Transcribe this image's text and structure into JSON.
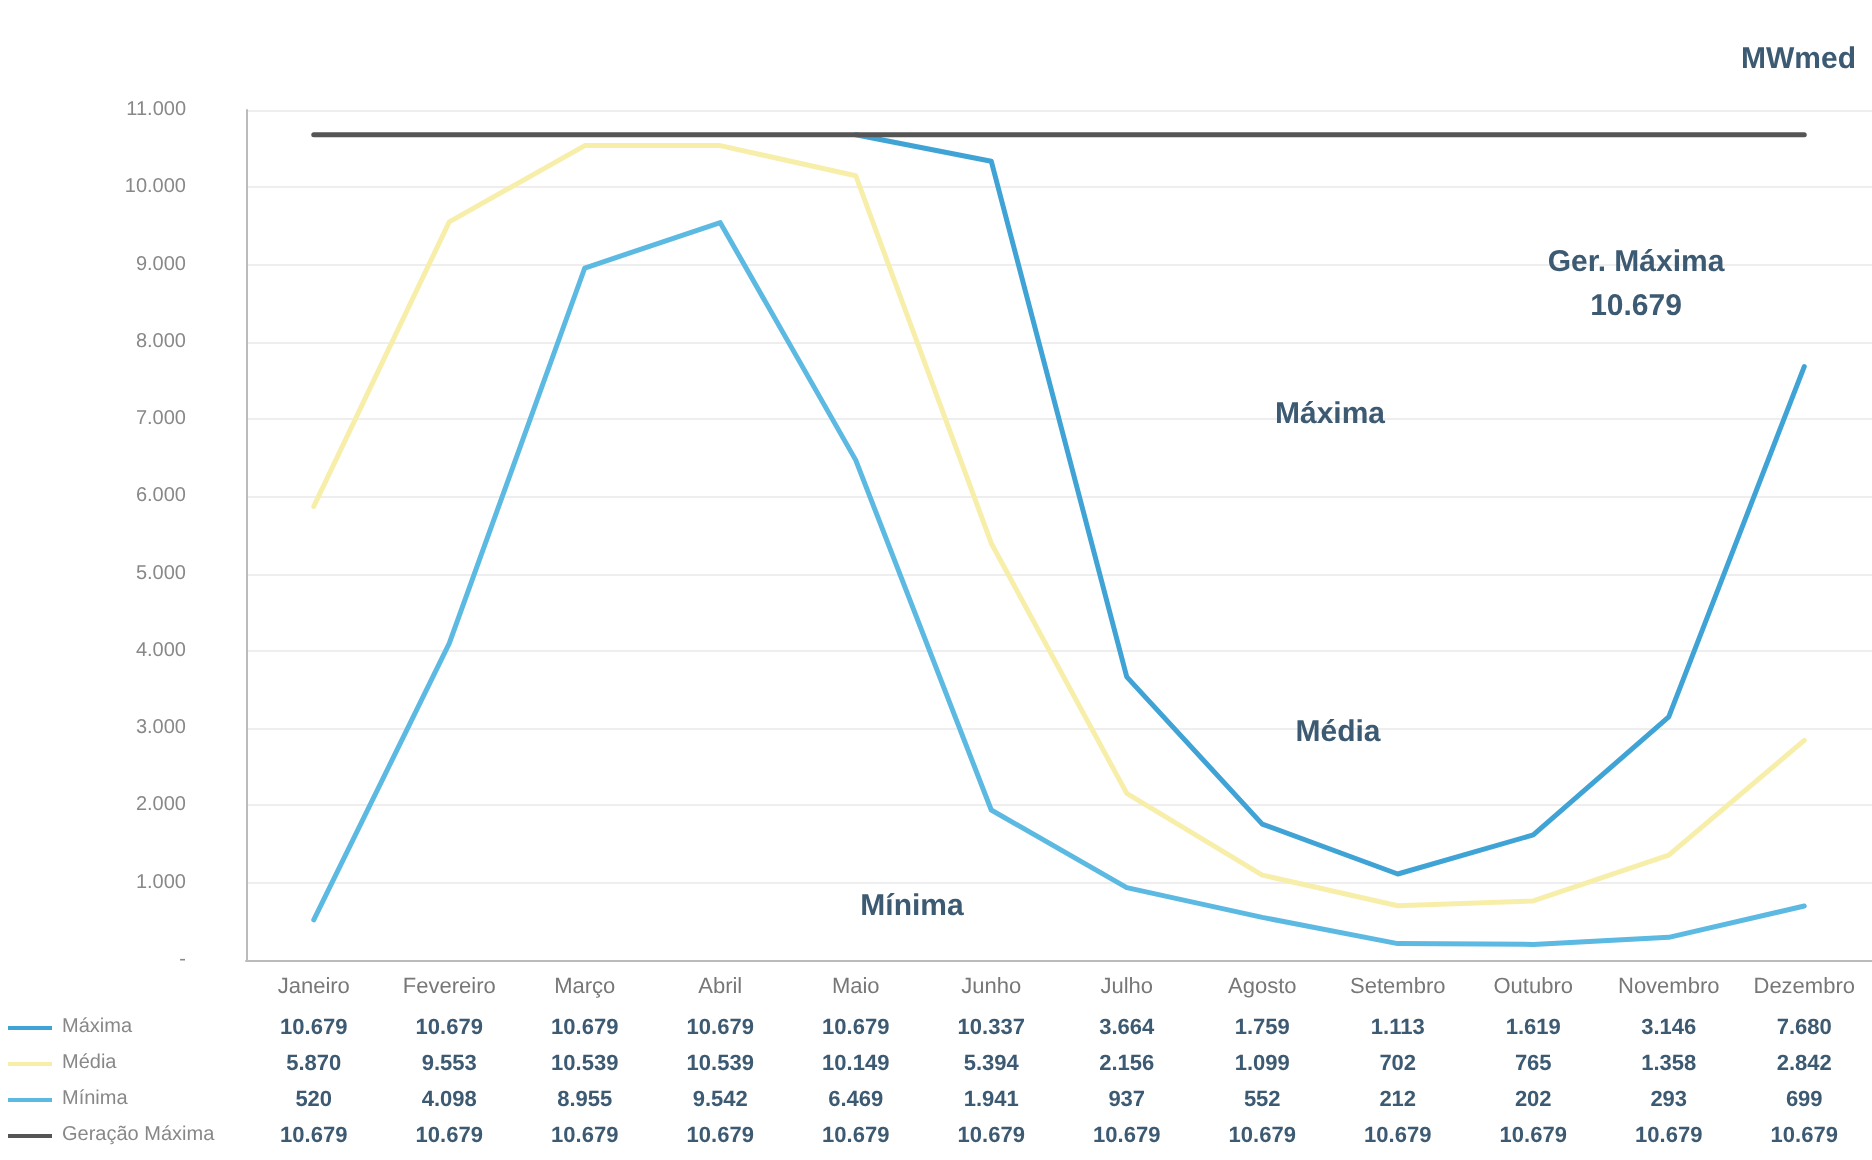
{
  "chart_data": {
    "type": "line",
    "ylabel": "MWmed",
    "categories": [
      "Janeiro",
      "Fevereiro",
      "Março",
      "Abril",
      "Maio",
      "Junho",
      "Julho",
      "Agosto",
      "Setembro",
      "Outubro",
      "Novembro",
      "Dezembro"
    ],
    "series": [
      {
        "name": "Máxima",
        "color": "#3fa3d6",
        "values": [
          null,
          null,
          null,
          null,
          10679,
          10337,
          3664,
          1759,
          1113,
          1619,
          3146,
          7680
        ],
        "value_labels": [
          "10.679",
          "10.679",
          "10.679",
          "10.679",
          "10.679",
          "10.337",
          "3.664",
          "1.759",
          "1.113",
          "1.619",
          "3.146",
          "7.680"
        ]
      },
      {
        "name": "Média",
        "color": "#f7eeaa",
        "values": [
          5870,
          9553,
          10539,
          10539,
          10149,
          5394,
          2156,
          1099,
          702,
          765,
          1358,
          2842
        ],
        "value_labels": [
          "5.870",
          "9.553",
          "10.539",
          "10.539",
          "10.149",
          "5.394",
          "2.156",
          "1.099",
          "702",
          "765",
          "1.358",
          "2.842"
        ]
      },
      {
        "name": "Mínima",
        "color": "#5cb9e2",
        "values": [
          520,
          4098,
          8955,
          9542,
          6469,
          1941,
          937,
          552,
          212,
          202,
          293,
          699
        ],
        "value_labels": [
          "520",
          "4.098",
          "8.955",
          "9.542",
          "6.469",
          "1.941",
          "937",
          "552",
          "212",
          "202",
          "293",
          "699"
        ]
      },
      {
        "name": "Geração Máxima",
        "color": "#555555",
        "values": [
          10679,
          10679,
          10679,
          10679,
          10679,
          10679,
          10679,
          10679,
          10679,
          10679,
          10679,
          10679
        ],
        "value_labels": [
          "10.679",
          "10.679",
          "10.679",
          "10.679",
          "10.679",
          "10.679",
          "10.679",
          "10.679",
          "10.679",
          "10.679",
          "10.679",
          "10.679"
        ]
      }
    ],
    "ylim": [
      0,
      11000
    ],
    "yticks": [
      {
        "value": 0,
        "label": "-"
      },
      {
        "value": 1000,
        "label": "1.000"
      },
      {
        "value": 2000,
        "label": "2.000"
      },
      {
        "value": 3000,
        "label": "3.000"
      },
      {
        "value": 4000,
        "label": "4.000"
      },
      {
        "value": 5000,
        "label": "5.000"
      },
      {
        "value": 6000,
        "label": "6.000"
      },
      {
        "value": 7000,
        "label": "7.000"
      },
      {
        "value": 8000,
        "label": "8.000"
      },
      {
        "value": 9000,
        "label": "9.000"
      },
      {
        "value": 10000,
        "label": "10.000"
      },
      {
        "value": 11000,
        "label": "11.000"
      }
    ],
    "grid": "y",
    "legend": "bottom left",
    "marker": "none",
    "line_style": "solid",
    "annotations": [
      "Ger. Máxima\n10.679",
      "Máxima",
      "Média",
      "Mínima"
    ]
  }
}
